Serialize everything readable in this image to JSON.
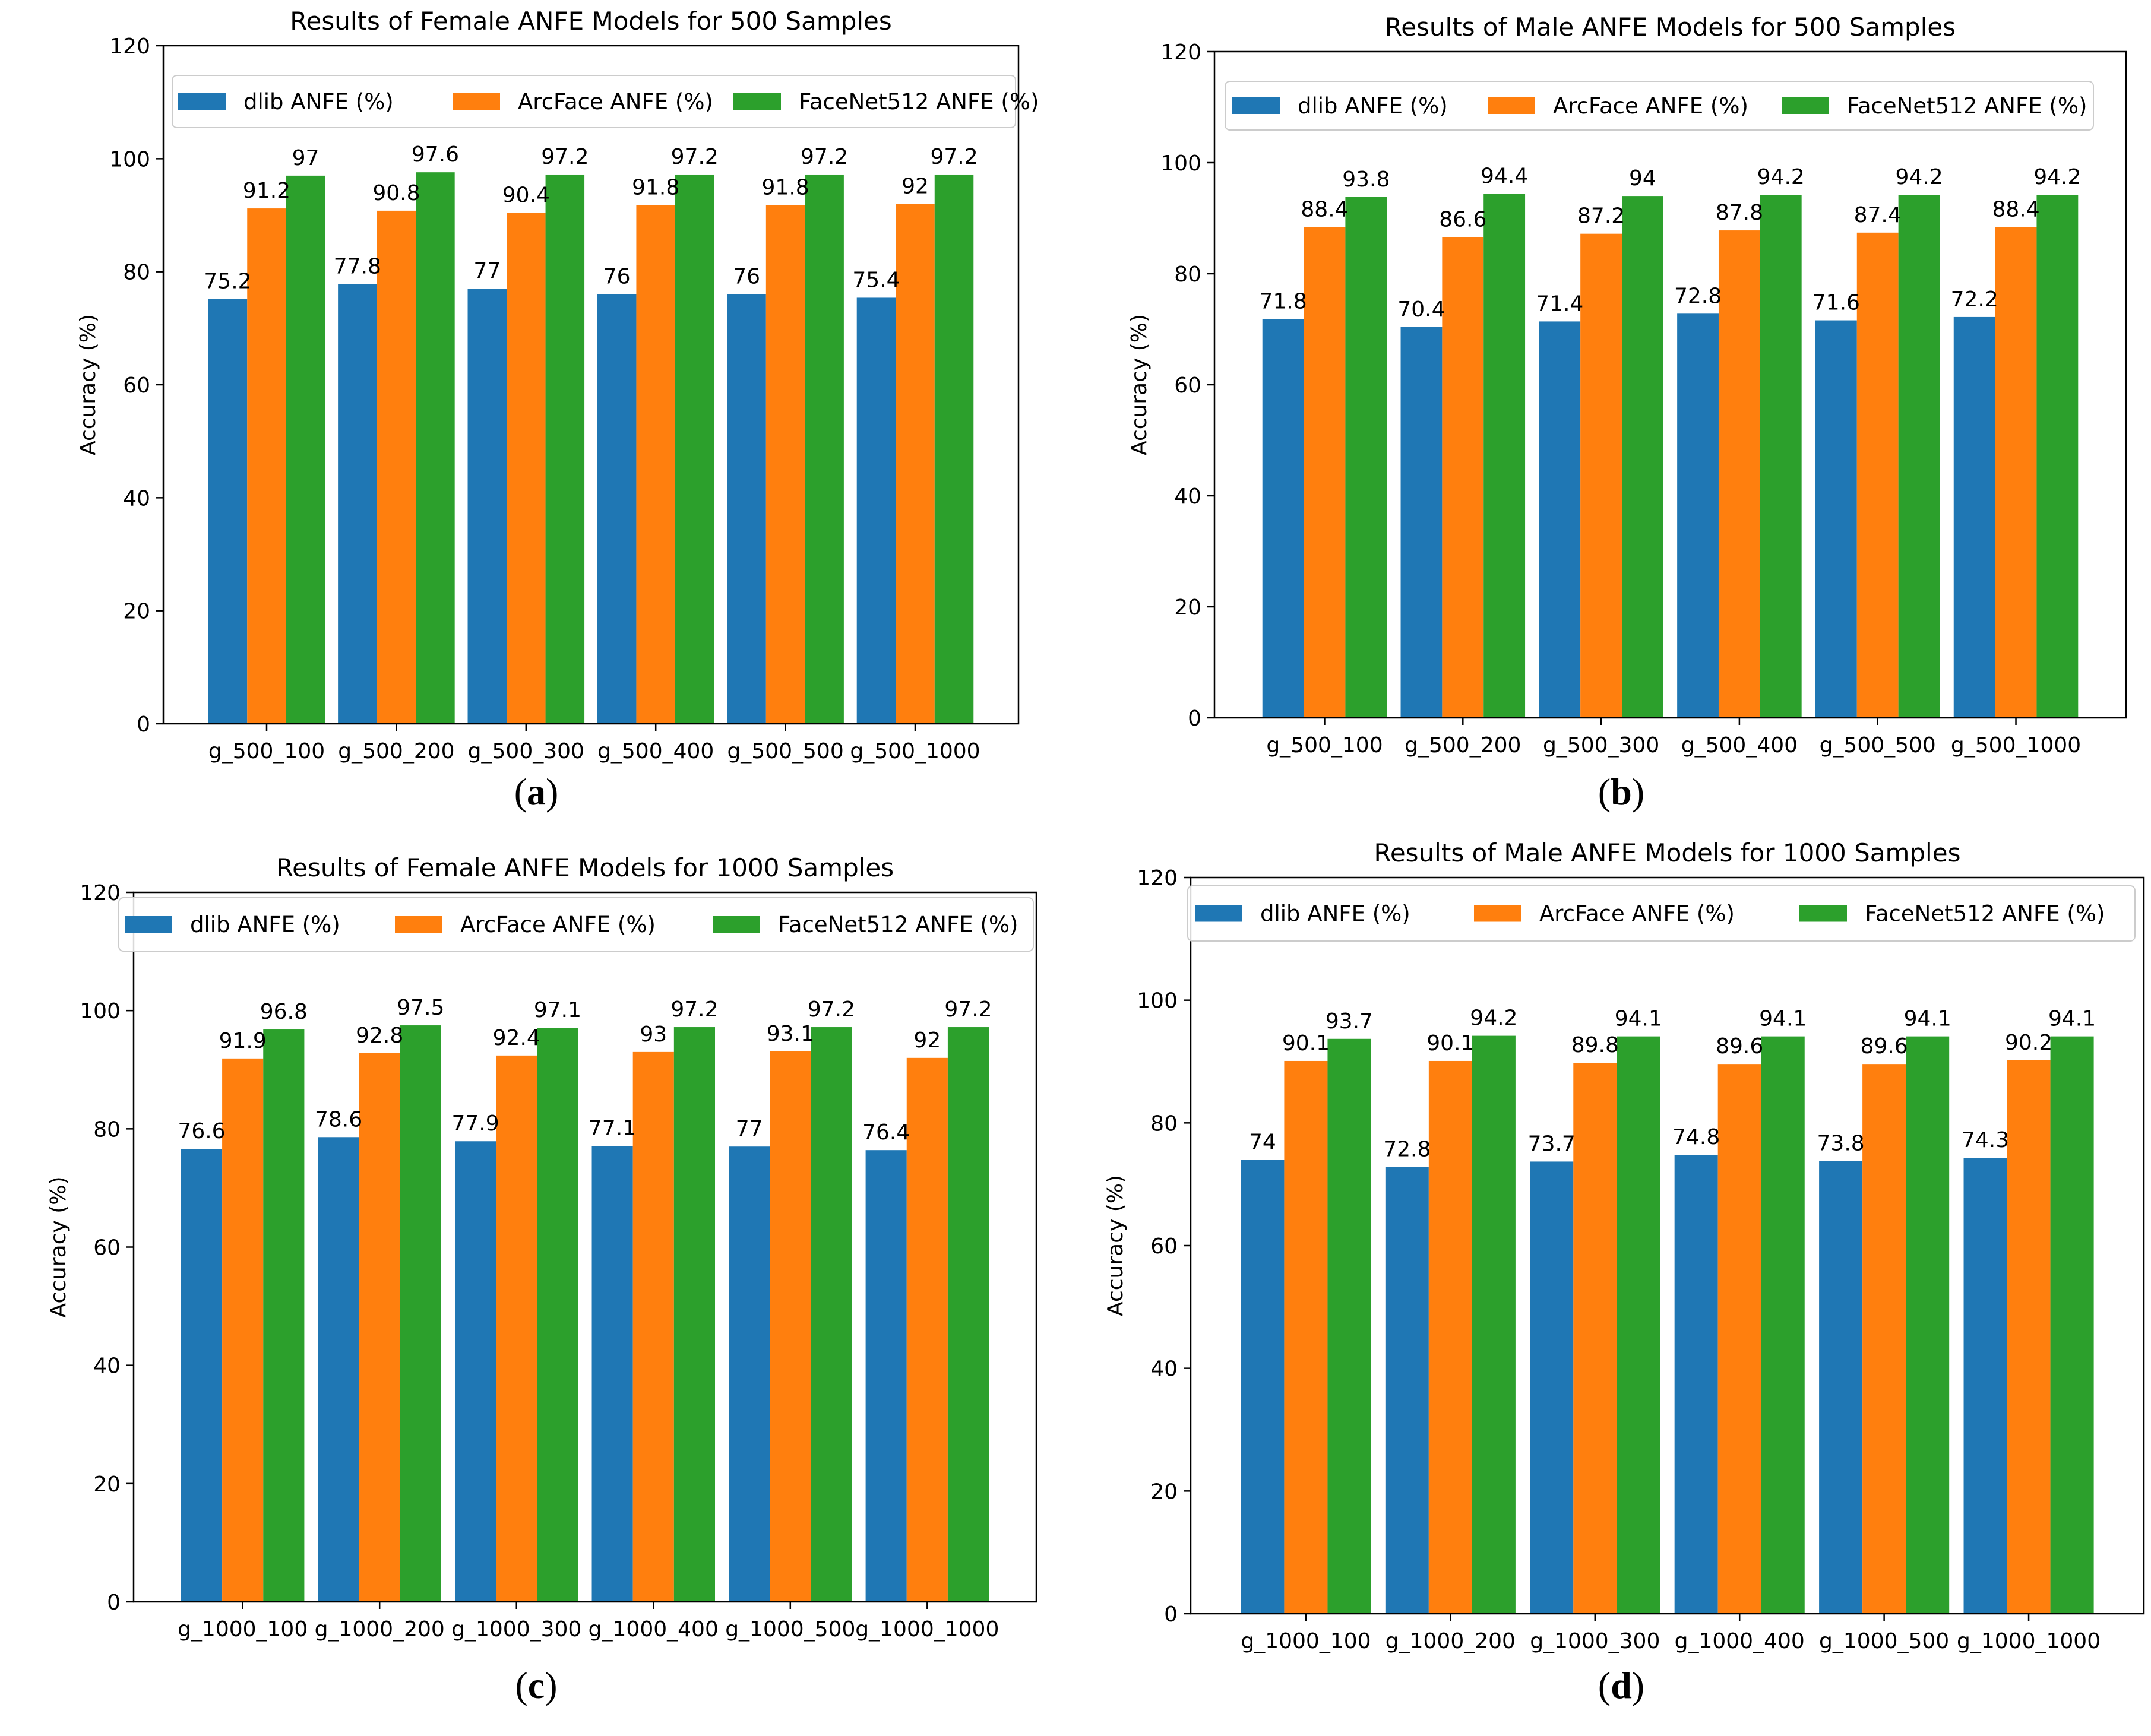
{
  "colors": {
    "series": [
      "#1f77b4",
      "#ff7f0e",
      "#2ca02c"
    ],
    "axis": "#000000",
    "background": "#ffffff"
  },
  "legend_labels": [
    "dlib ANFE (%)",
    "ArcFace ANFE (%)",
    "FaceNet512 ANFE (%)"
  ],
  "chart_data": [
    {
      "type": "bar",
      "panel_label": "a",
      "title": "Results of Female ANFE Models for 500 Samples",
      "xlabel": "",
      "ylabel": "Accuracy (%)",
      "ylim": [
        0,
        120
      ],
      "yticks": [
        0,
        20,
        40,
        60,
        80,
        100,
        120
      ],
      "legend_position": "top",
      "categories": [
        "g_500_100",
        "g_500_200",
        "g_500_300",
        "g_500_400",
        "g_500_500",
        "g_500_1000"
      ],
      "series": [
        {
          "name": "dlib ANFE (%)",
          "values": [
            75.2,
            77.8,
            77,
            76,
            76,
            75.4
          ],
          "labels": [
            "75.2",
            "77.8",
            "77",
            "76",
            "76",
            "75.4"
          ]
        },
        {
          "name": "ArcFace ANFE (%)",
          "values": [
            91.2,
            90.8,
            90.4,
            91.8,
            91.8,
            92
          ],
          "labels": [
            "91.2",
            "90.8",
            "90.4",
            "91.8",
            "91.8",
            "92"
          ]
        },
        {
          "name": "FaceNet512 ANFE (%)",
          "values": [
            97,
            97.6,
            97.2,
            97.2,
            97.2,
            97.2
          ],
          "labels": [
            "97",
            "97.6",
            "97.2",
            "97.2",
            "97.2",
            "97.2"
          ]
        }
      ]
    },
    {
      "type": "bar",
      "panel_label": "b",
      "title": "Results of Male ANFE Models for 500 Samples",
      "xlabel": "",
      "ylabel": "Accuracy (%)",
      "ylim": [
        0,
        120
      ],
      "yticks": [
        0,
        20,
        40,
        60,
        80,
        100,
        120
      ],
      "legend_position": "top",
      "categories": [
        "g_500_100",
        "g_500_200",
        "g_500_300",
        "g_500_400",
        "g_500_500",
        "g_500_1000"
      ],
      "series": [
        {
          "name": "dlib ANFE (%)",
          "values": [
            71.8,
            70.4,
            71.4,
            72.8,
            71.6,
            72.2
          ],
          "labels": [
            "71.8",
            "70.4",
            "71.4",
            "72.8",
            "71.6",
            "72.2"
          ]
        },
        {
          "name": "ArcFace ANFE (%)",
          "values": [
            88.4,
            86.6,
            87.2,
            87.8,
            87.4,
            88.4
          ],
          "labels": [
            "88.4",
            "86.6",
            "87.2",
            "87.8",
            "87.4",
            "88.4"
          ]
        },
        {
          "name": "FaceNet512 ANFE (%)",
          "values": [
            93.8,
            94.4,
            94,
            94.2,
            94.2,
            94.2
          ],
          "labels": [
            "93.8",
            "94.4",
            "94",
            "94.2",
            "94.2",
            "94.2"
          ]
        }
      ]
    },
    {
      "type": "bar",
      "panel_label": "c",
      "title": "Results of Female ANFE Models for 1000 Samples",
      "xlabel": "",
      "ylabel": "Accuracy (%)",
      "ylim": [
        0,
        120
      ],
      "yticks": [
        0,
        20,
        40,
        60,
        80,
        100,
        120
      ],
      "legend_position": "top",
      "categories": [
        "g_1000_100",
        "g_1000_200",
        "g_1000_300",
        "g_1000_400",
        "g_1000_500",
        "g_1000_1000"
      ],
      "series": [
        {
          "name": "dlib ANFE (%)",
          "values": [
            76.6,
            78.6,
            77.9,
            77.1,
            77,
            76.4
          ],
          "labels": [
            "76.6",
            "78.6",
            "77.9",
            "77.1",
            "77",
            "76.4"
          ]
        },
        {
          "name": "ArcFace ANFE (%)",
          "values": [
            91.9,
            92.8,
            92.4,
            93,
            93.1,
            92
          ],
          "labels": [
            "91.9",
            "92.8",
            "92.4",
            "93",
            "93.1",
            "92"
          ]
        },
        {
          "name": "FaceNet512 ANFE (%)",
          "values": [
            96.8,
            97.5,
            97.1,
            97.2,
            97.2,
            97.2
          ],
          "labels": [
            "96.8",
            "97.5",
            "97.1",
            "97.2",
            "97.2",
            "97.2"
          ]
        }
      ]
    },
    {
      "type": "bar",
      "panel_label": "d",
      "title": "Results of Male ANFE Models for 1000 Samples",
      "xlabel": "",
      "ylabel": "Accuracy (%)",
      "ylim": [
        0,
        120
      ],
      "yticks": [
        0,
        20,
        40,
        60,
        80,
        100,
        120
      ],
      "legend_position": "top",
      "categories": [
        "g_1000_100",
        "g_1000_200",
        "g_1000_300",
        "g_1000_400",
        "g_1000_500",
        "g_1000_1000"
      ],
      "series": [
        {
          "name": "dlib ANFE (%)",
          "values": [
            74,
            72.8,
            73.7,
            74.8,
            73.8,
            74.3
          ],
          "labels": [
            "74",
            "72.8",
            "73.7",
            "74.8",
            "73.8",
            "74.3"
          ]
        },
        {
          "name": "ArcFace ANFE (%)",
          "values": [
            90.1,
            90.1,
            89.8,
            89.6,
            89.6,
            90.2
          ],
          "labels": [
            "90.1",
            "90.1",
            "89.8",
            "89.6",
            "89.6",
            "90.2"
          ]
        },
        {
          "name": "FaceNet512 ANFE (%)",
          "values": [
            93.7,
            94.2,
            94.1,
            94.1,
            94.1,
            94.1
          ],
          "labels": [
            "93.7",
            "94.2",
            "94.1",
            "94.1",
            "94.1",
            "94.1"
          ]
        }
      ]
    }
  ]
}
